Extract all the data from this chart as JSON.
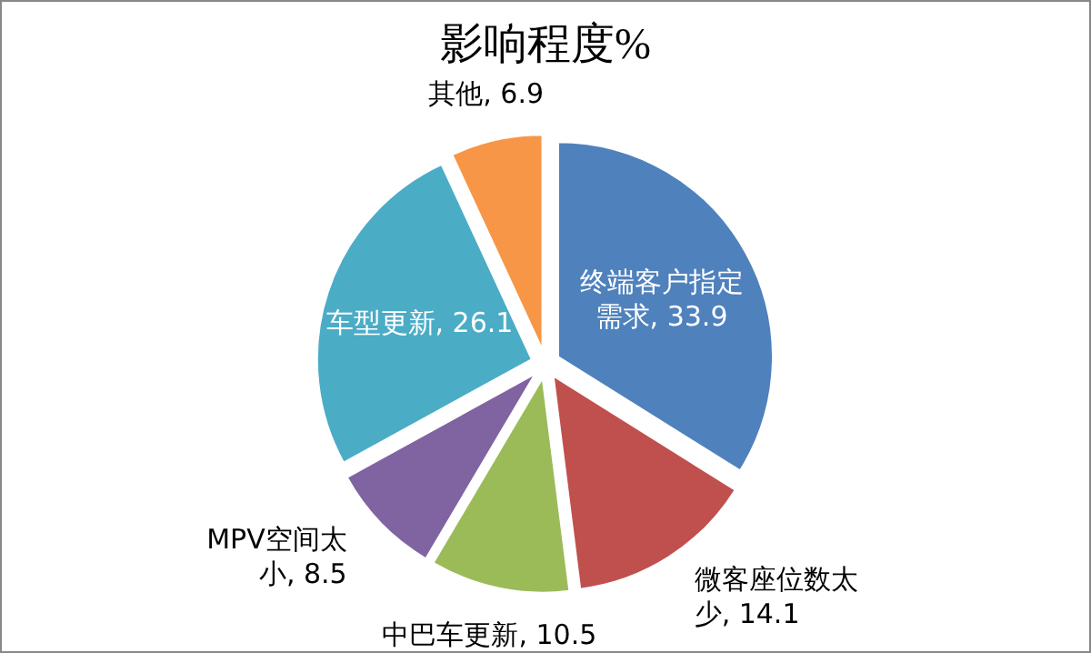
{
  "chart_data": {
    "type": "pie",
    "title": "影响程度%",
    "categories": [
      "终端客户指定需求",
      "微客座位数太少",
      "中巴车更新",
      "MPV空间太小",
      "车型更新",
      "其他"
    ],
    "values": [
      33.9,
      14.1,
      10.5,
      8.5,
      26.1,
      6.9
    ],
    "value_labels": [
      ", 33.9",
      ", 14.1",
      ", 10.5",
      ", 8.5",
      ", 26.1",
      ", 6.9"
    ],
    "colors": [
      "#4f81bd",
      "#c0504d",
      "#9bbb59",
      "#8064a2",
      "#4bacc6",
      "#f79646"
    ],
    "legend": false
  }
}
